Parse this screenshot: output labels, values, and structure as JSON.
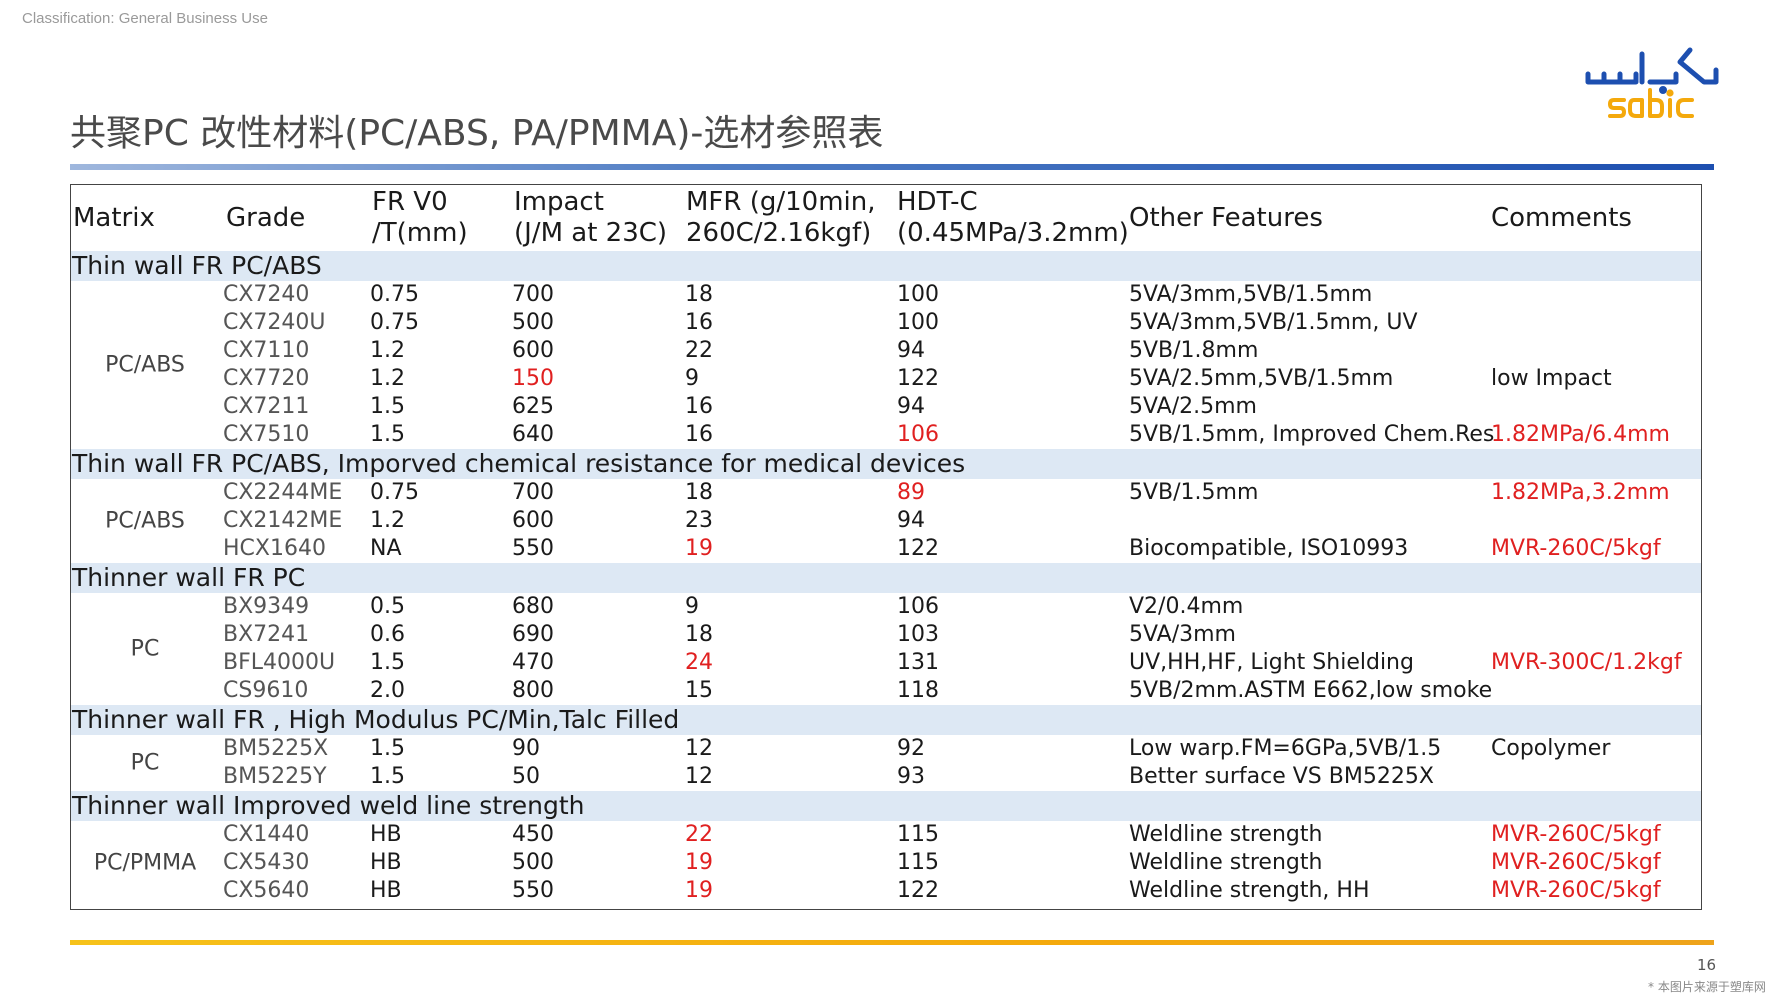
{
  "classification": "Classification: General Business Use",
  "title": "共聚PC 改性材料(PC/ABS, PA/PMMA)-选材参照表",
  "logo": {
    "arabic_text": "سابك",
    "latin_text": "sabic",
    "arabic_color": "#1d4fb0",
    "latin_color": "#f4a90c"
  },
  "page_number": "16",
  "watermark": "* 本图片来源于塑库网",
  "colors": {
    "red": "#e02020",
    "section_bg": "#dde8f4",
    "accent_blue": "#1d4fb0",
    "accent_gold": "#f4a90c"
  },
  "table": {
    "headers": {
      "matrix": "Matrix",
      "grade": "Grade",
      "fr_line1": "FR V0",
      "fr_line2": "/T(mm)",
      "impact_line1": "Impact",
      "impact_line2": "(J/M at 23C)",
      "mfr_line1": "MFR (g/10min,",
      "mfr_line2": "260C/2.16kgf)",
      "hdt_line1": "HDT-C",
      "hdt_line2": "(0.45MPa/3.2mm)",
      "other": "Other Features",
      "comments": "Comments"
    },
    "sections": [
      {
        "title": "Thin wall FR PC/ABS",
        "matrix": "PC/ABS",
        "rows": [
          {
            "grade": "CX7240",
            "fr": "0.75",
            "impact": "700",
            "mfr": "18",
            "hdt": "100",
            "other": "5VA/3mm,5VB/1.5mm",
            "comments": "",
            "red": []
          },
          {
            "grade": "CX7240U",
            "fr": "0.75",
            "impact": "500",
            "mfr": "16",
            "hdt": "100",
            "other": "5VA/3mm,5VB/1.5mm, UV",
            "comments": "",
            "red": []
          },
          {
            "grade": "CX7110",
            "fr": "1.2",
            "impact": "600",
            "mfr": "22",
            "hdt": "94",
            "other": "5VB/1.8mm",
            "comments": "",
            "red": []
          },
          {
            "grade": "CX7720",
            "fr": "1.2",
            "impact": "150",
            "mfr": "9",
            "hdt": "122",
            "other": "5VA/2.5mm,5VB/1.5mm",
            "comments": "low Impact",
            "red": [
              "impact"
            ]
          },
          {
            "grade": "CX7211",
            "fr": "1.5",
            "impact": "625",
            "mfr": "16",
            "hdt": "94",
            "other": "5VA/2.5mm",
            "comments": "",
            "red": []
          },
          {
            "grade": "CX7510",
            "fr": "1.5",
            "impact": "640",
            "mfr": "16",
            "hdt": "106",
            "other": "5VB/1.5mm, Improved Chem.Res",
            "comments": "1.82MPa/6.4mm",
            "red": [
              "hdt",
              "comments"
            ]
          }
        ]
      },
      {
        "title": "Thin wall FR PC/ABS, Imporved chemical resistance for medical devices",
        "matrix": "PC/ABS",
        "rows": [
          {
            "grade": "CX2244ME",
            "fr": "0.75",
            "impact": "700",
            "mfr": "18",
            "hdt": "89",
            "other": "5VB/1.5mm",
            "comments": "1.82MPa,3.2mm",
            "red": [
              "hdt",
              "comments"
            ]
          },
          {
            "grade": "CX2142ME",
            "fr": "1.2",
            "impact": "600",
            "mfr": "23",
            "hdt": "94",
            "other": "",
            "comments": "",
            "red": []
          },
          {
            "grade": "HCX1640",
            "fr": "NA",
            "impact": "550",
            "mfr": "19",
            "hdt": "122",
            "other": "Biocompatible, ISO10993",
            "comments": "MVR-260C/5kgf",
            "red": [
              "mfr",
              "comments"
            ]
          }
        ]
      },
      {
        "title": "Thinner wall FR PC",
        "matrix": "PC",
        "rows": [
          {
            "grade": "BX9349",
            "fr": "0.5",
            "impact": "680",
            "mfr": "9",
            "hdt": "106",
            "other": "V2/0.4mm",
            "comments": "",
            "red": []
          },
          {
            "grade": "BX7241",
            "fr": "0.6",
            "impact": "690",
            "mfr": "18",
            "hdt": "103",
            "other": "5VA/3mm",
            "comments": "",
            "red": []
          },
          {
            "grade": "BFL4000U",
            "fr": "1.5",
            "impact": "470",
            "mfr": "24",
            "hdt": "131",
            "other": "UV,HH,HF, Light Shielding",
            "comments": "MVR-300C/1.2kgf",
            "red": [
              "mfr",
              "comments"
            ]
          },
          {
            "grade": "CS9610",
            "fr": "2.0",
            "impact": "800",
            "mfr": "15",
            "hdt": "118",
            "other": "5VB/2mm.ASTM E662,low smoke",
            "comments": "",
            "red": []
          }
        ]
      },
      {
        "title": "Thinner wall FR , High Modulus PC/Min,Talc Filled",
        "matrix": "PC",
        "rows": [
          {
            "grade": "BM5225X",
            "fr": "1.5",
            "impact": "90",
            "mfr": "12",
            "hdt": "92",
            "other": "Low warp.FM=6GPa,5VB/1.5",
            "comments": "Copolymer",
            "red": []
          },
          {
            "grade": "BM5225Y",
            "fr": "1.5",
            "impact": "50",
            "mfr": "12",
            "hdt": "93",
            "other": "Better surface VS BM5225X",
            "comments": "",
            "red": []
          }
        ]
      },
      {
        "title": "Thinner wall  Improved weld line strength",
        "matrix": "PC/PMMA",
        "rows": [
          {
            "grade": "CX1440",
            "fr": "HB",
            "impact": "450",
            "mfr": "22",
            "hdt": "115",
            "other": "Weldline strength",
            "comments": "MVR-260C/5kgf",
            "red": [
              "mfr",
              "comments"
            ]
          },
          {
            "grade": "CX5430",
            "fr": "HB",
            "impact": "500",
            "mfr": "19",
            "hdt": "115",
            "other": "Weldline strength",
            "comments": "MVR-260C/5kgf",
            "red": [
              "mfr",
              "comments"
            ]
          },
          {
            "grade": "CX5640",
            "fr": "HB",
            "impact": "550",
            "mfr": "19",
            "hdt": "122",
            "other": "Weldline strength, HH",
            "comments": "MVR-260C/5kgf",
            "red": [
              "mfr",
              "comments"
            ]
          }
        ]
      }
    ]
  }
}
